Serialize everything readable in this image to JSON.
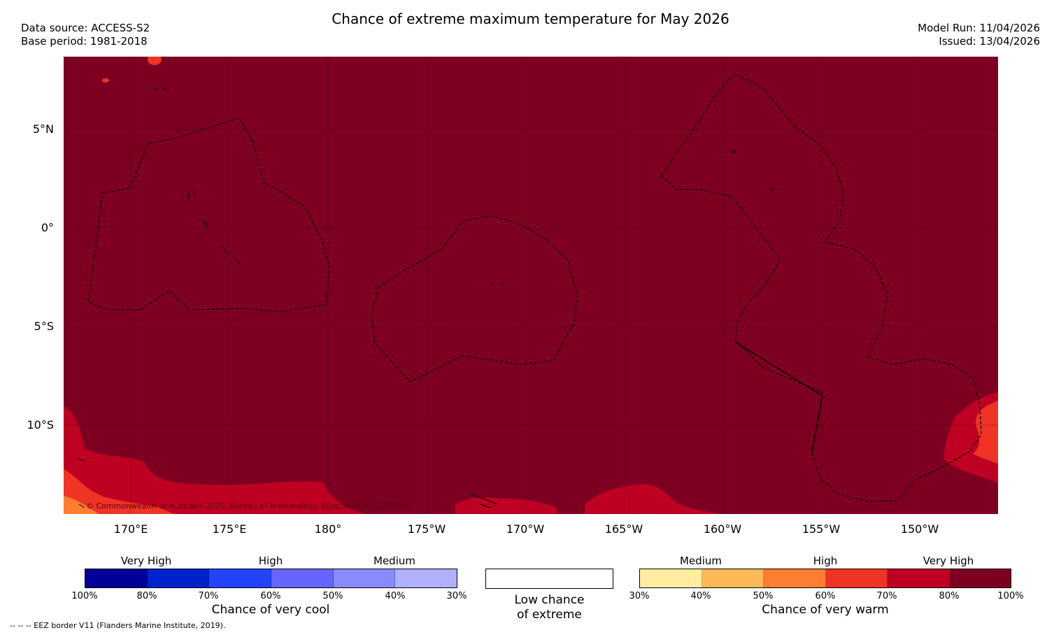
{
  "header": {
    "title": "Chance of extreme maximum temperature for May 2026",
    "data_source": "Data source: ACCESS-S2",
    "base_period": "Base period: 1981-2018",
    "model_run": "Model Run: 11/04/2026",
    "issued": "Issued: 13/04/2026"
  },
  "map": {
    "background_color": "#7e0021",
    "copyright": "© Commonwealth of Australia 2026, Bureau of Meteorology. Supported by COSPPac",
    "lat_labels": [
      "5°N",
      "0°",
      "5°S",
      "10°S"
    ],
    "lon_labels": [
      "170°E",
      "175°E",
      "180°",
      "175°W",
      "170°W",
      "165°W",
      "160°W",
      "155°W",
      "150°W"
    ]
  },
  "legend": {
    "cool": {
      "bands": [
        "Very High",
        "High",
        "Medium"
      ],
      "ticks": [
        "100%",
        "80%",
        "70%",
        "60%",
        "50%",
        "40%",
        "30%"
      ],
      "colors": [
        "#000099",
        "#0022cc",
        "#2244ff",
        "#6666ff",
        "#8a8aff",
        "#b0b0ff"
      ],
      "caption": "Chance of very cool"
    },
    "neutral": {
      "line1": "Low chance",
      "line2": "of extreme"
    },
    "warm": {
      "bands": [
        "Medium",
        "High",
        "Very High"
      ],
      "ticks": [
        "30%",
        "40%",
        "50%",
        "60%",
        "70%",
        "80%",
        "100%"
      ],
      "colors": [
        "#ffeea0",
        "#feb957",
        "#fd7e30",
        "#ef3324",
        "#be0022",
        "#7e0021"
      ],
      "caption": "Chance of very warm"
    }
  },
  "footnote": "--  --  -- EEZ border V11 (Flanders Marine Institute, 2019)."
}
